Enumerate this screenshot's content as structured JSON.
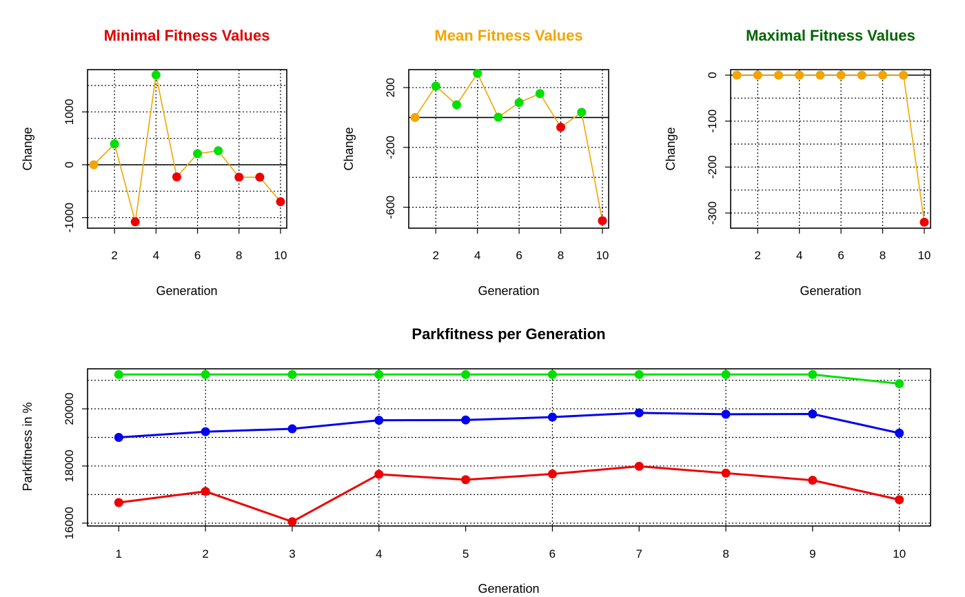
{
  "colors": {
    "min_title": "#e00000",
    "mean_title": "#f2a500",
    "max_title": "#006400",
    "connector": "#f2a500",
    "increase": "#00e000",
    "decrease": "#ee0000",
    "nochange": "#f2a500",
    "series_max": "#00e000",
    "series_mean": "#0000ee",
    "series_min": "#ee0000"
  },
  "chart_data": [
    {
      "type": "line",
      "title": "Minimal Fitness Values",
      "xlabel": "Generation",
      "ylabel": "Change",
      "xlim": [
        0.7,
        10.3
      ],
      "ylim": [
        -1200,
        1800
      ],
      "xticks": [
        2,
        4,
        6,
        8,
        10
      ],
      "yticks": [
        -1000,
        0,
        1000
      ],
      "hgrid": [
        -1000,
        -500,
        0,
        500,
        1000,
        1500
      ],
      "vgrid": [
        2,
        4,
        6,
        8,
        10
      ],
      "grid": true,
      "reference_line": 0,
      "x": [
        1,
        2,
        3,
        4,
        5,
        6,
        7,
        8,
        9,
        10
      ],
      "values": [
        0,
        395,
        -1080,
        1700,
        -230,
        210,
        265,
        -235,
        -235,
        -700
      ]
    },
    {
      "type": "line",
      "title": "Mean Fitness Values",
      "xlabel": "Generation",
      "ylabel": "Change",
      "xlim": [
        0.7,
        10.3
      ],
      "ylim": [
        -740,
        320
      ],
      "xticks": [
        2,
        4,
        6,
        8,
        10
      ],
      "yticks": [
        -600,
        -200,
        200
      ],
      "hgrid": [
        -600,
        -400,
        -200,
        200
      ],
      "vgrid": [
        2,
        4,
        6,
        8,
        10
      ],
      "grid": true,
      "reference_line": 0,
      "x": [
        1,
        2,
        3,
        4,
        5,
        6,
        7,
        8,
        9,
        10
      ],
      "values": [
        0,
        210,
        85,
        295,
        2,
        100,
        160,
        -65,
        35,
        -690
      ]
    },
    {
      "type": "line",
      "title": "Maximal Fitness Values",
      "xlabel": "Generation",
      "ylabel": "Change",
      "xlim": [
        0.7,
        10.3
      ],
      "ylim": [
        -333,
        12
      ],
      "xticks": [
        2,
        4,
        6,
        8,
        10
      ],
      "yticks": [
        -300,
        -200,
        -100,
        0
      ],
      "hgrid": [
        -300,
        -250,
        -200,
        -150,
        -100,
        -50
      ],
      "vgrid": [
        2,
        4,
        6,
        8,
        10
      ],
      "grid": true,
      "reference_line": 0,
      "x": [
        1,
        2,
        3,
        4,
        5,
        6,
        7,
        8,
        9,
        10
      ],
      "values": [
        0,
        0,
        0,
        0,
        0,
        0,
        0,
        0,
        0,
        -320
      ]
    },
    {
      "type": "line",
      "title": "Parkfitness per Generation",
      "xlabel": "Generation",
      "ylabel": "Parkfitness in %",
      "xlim": [
        0.64,
        10.36
      ],
      "ylim": [
        15900,
        21400
      ],
      "xticks": [
        1,
        2,
        3,
        4,
        5,
        6,
        7,
        8,
        9,
        10
      ],
      "yticks": [
        16000,
        18000,
        20000
      ],
      "hgrid": [
        16000,
        17000,
        18000,
        19000,
        20000,
        21000
      ],
      "vgrid": [
        2,
        4,
        6,
        8,
        10
      ],
      "grid": true,
      "x": [
        1,
        2,
        3,
        4,
        5,
        6,
        7,
        8,
        9,
        10
      ],
      "series": [
        {
          "key": "max",
          "values": [
            21200,
            21200,
            21200,
            21200,
            21200,
            21200,
            21200,
            21200,
            21200,
            20880
          ]
        },
        {
          "key": "mean",
          "values": [
            19000,
            19200,
            19300,
            19600,
            19610,
            19710,
            19860,
            19810,
            19820,
            19150
          ]
        },
        {
          "key": "min",
          "values": [
            16720,
            17110,
            16050,
            17710,
            17520,
            17720,
            17990,
            17750,
            17500,
            16820
          ]
        }
      ]
    }
  ]
}
